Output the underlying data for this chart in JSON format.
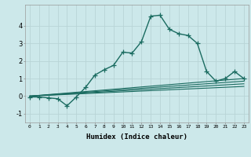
{
  "title": "",
  "xlabel": "Humidex (Indice chaleur)",
  "background_color": "#cce8ea",
  "grid_color": "#b8d4d6",
  "line_color": "#1a6b60",
  "xlim": [
    -0.5,
    23.5
  ],
  "ylim": [
    -1.5,
    5.2
  ],
  "yticks": [
    -1,
    0,
    1,
    2,
    3,
    4
  ],
  "xtick_labels": [
    "0",
    "1",
    "2",
    "3",
    "4",
    "5",
    "6",
    "7",
    "8",
    "9",
    "10",
    "11",
    "12",
    "13",
    "14",
    "15",
    "16",
    "17",
    "18",
    "19",
    "20",
    "21",
    "22",
    "23"
  ],
  "series": [
    {
      "x": [
        0,
        1,
        2,
        3,
        4,
        5,
        6,
        7,
        8,
        9,
        10,
        11,
        12,
        13,
        14,
        15,
        16,
        17,
        18,
        19,
        20,
        21,
        22,
        23
      ],
      "y": [
        -0.05,
        -0.05,
        -0.1,
        -0.15,
        -0.55,
        -0.05,
        0.5,
        1.2,
        1.5,
        1.75,
        2.5,
        2.45,
        3.1,
        4.55,
        4.6,
        3.8,
        3.55,
        3.45,
        3.0,
        1.4,
        0.85,
        1.0,
        1.4,
        1.0
      ],
      "marker": "+",
      "linestyle": "-",
      "linewidth": 1.0,
      "markersize": 4
    },
    {
      "x": [
        0,
        23
      ],
      "y": [
        0,
        1.0
      ],
      "marker": null,
      "linestyle": "-",
      "linewidth": 0.8,
      "markersize": 0
    },
    {
      "x": [
        0,
        23
      ],
      "y": [
        0,
        0.85
      ],
      "marker": null,
      "linestyle": "-",
      "linewidth": 0.8,
      "markersize": 0
    },
    {
      "x": [
        0,
        23
      ],
      "y": [
        0,
        0.7
      ],
      "marker": null,
      "linestyle": "-",
      "linewidth": 0.8,
      "markersize": 0
    },
    {
      "x": [
        0,
        23
      ],
      "y": [
        0,
        0.55
      ],
      "marker": null,
      "linestyle": "-",
      "linewidth": 0.8,
      "markersize": 0
    }
  ]
}
